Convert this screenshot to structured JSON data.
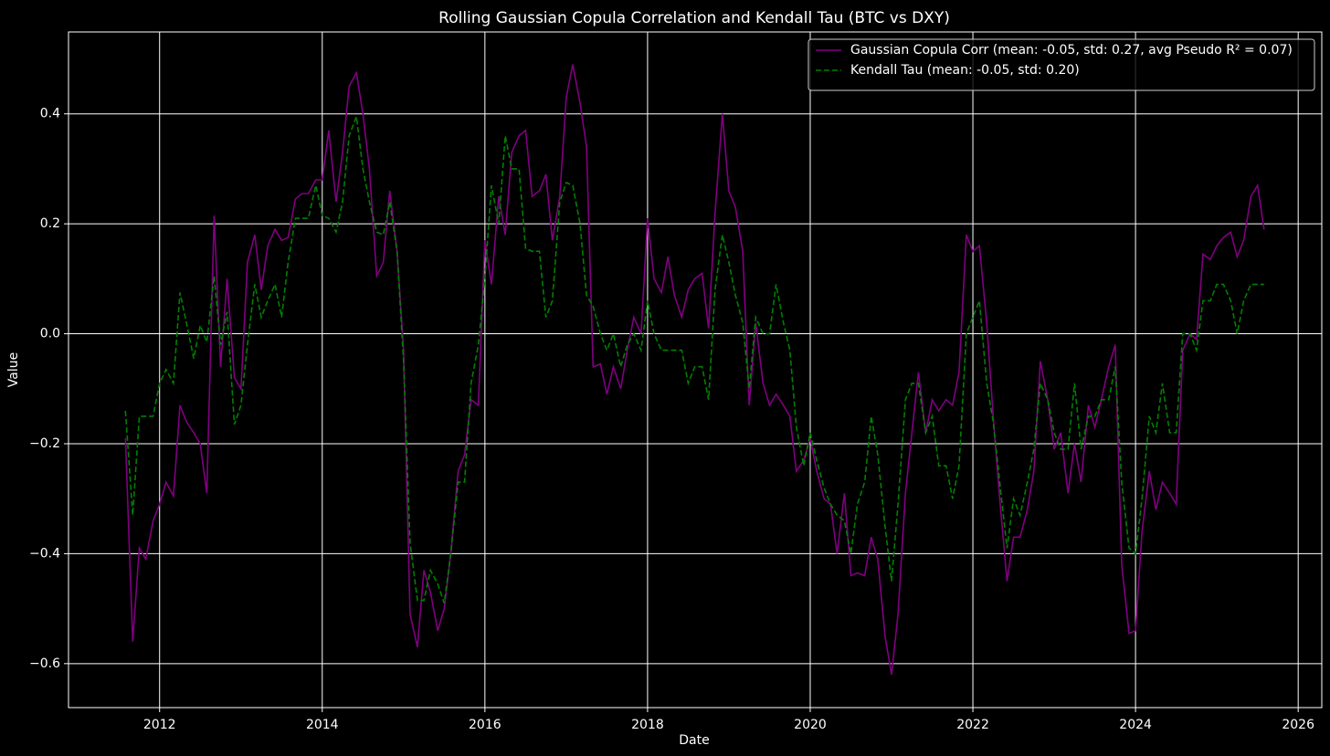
{
  "chart_data": {
    "type": "line",
    "title": "Rolling Gaussian Copula Correlation and Kendall Tau (BTC vs DXY)",
    "xlabel": "Date",
    "ylabel": "Value",
    "x": [
      2011.58,
      2011.67,
      2011.75,
      2011.83,
      2011.92,
      2012,
      2012.08,
      2012.17,
      2012.25,
      2012.33,
      2012.42,
      2012.5,
      2012.58,
      2012.67,
      2012.75,
      2012.83,
      2012.92,
      2013,
      2013.08,
      2013.17,
      2013.25,
      2013.33,
      2013.42,
      2013.5,
      2013.58,
      2013.67,
      2013.75,
      2013.83,
      2013.92,
      2014,
      2014.08,
      2014.17,
      2014.25,
      2014.33,
      2014.42,
      2014.5,
      2014.58,
      2014.67,
      2014.75,
      2014.83,
      2014.92,
      2015,
      2015.08,
      2015.17,
      2015.25,
      2015.33,
      2015.42,
      2015.5,
      2015.58,
      2015.67,
      2015.75,
      2015.83,
      2015.92,
      2016,
      2016.08,
      2016.17,
      2016.25,
      2016.33,
      2016.42,
      2016.5,
      2016.58,
      2016.67,
      2016.75,
      2016.83,
      2016.92,
      2017,
      2017.08,
      2017.17,
      2017.25,
      2017.33,
      2017.42,
      2017.5,
      2017.58,
      2017.67,
      2017.75,
      2017.83,
      2017.92,
      2018,
      2018.08,
      2018.17,
      2018.25,
      2018.33,
      2018.42,
      2018.5,
      2018.58,
      2018.67,
      2018.75,
      2018.83,
      2018.92,
      2019,
      2019.08,
      2019.17,
      2019.25,
      2019.33,
      2019.42,
      2019.5,
      2019.58,
      2019.67,
      2019.75,
      2019.83,
      2019.92,
      2020,
      2020.08,
      2020.17,
      2020.25,
      2020.33,
      2020.42,
      2020.5,
      2020.58,
      2020.67,
      2020.75,
      2020.83,
      2020.92,
      2021,
      2021.08,
      2021.17,
      2021.25,
      2021.33,
      2021.42,
      2021.5,
      2021.58,
      2021.67,
      2021.75,
      2021.83,
      2021.92,
      2022,
      2022.08,
      2022.17,
      2022.25,
      2022.33,
      2022.42,
      2022.5,
      2022.58,
      2022.67,
      2022.75,
      2022.83,
      2022.92,
      2023,
      2023.08,
      2023.17,
      2023.25,
      2023.33,
      2023.42,
      2023.5,
      2023.58,
      2023.67,
      2023.75,
      2023.83,
      2023.92,
      2024,
      2024.08,
      2024.17,
      2024.25,
      2024.33,
      2024.42,
      2024.5,
      2024.58,
      2024.67,
      2024.75,
      2024.83,
      2024.92,
      2025,
      2025.08,
      2025.17,
      2025.25,
      2025.33,
      2025.42,
      2025.5,
      2025.58
    ],
    "series": [
      {
        "name": "Gaussian Copula Corr (mean: -0.05, std: 0.27, avg Pseudo R² = 0.07)",
        "color": "#800080",
        "linestyle": "solid",
        "values": [
          -0.19,
          -0.56,
          -0.39,
          -0.41,
          -0.34,
          -0.31,
          -0.27,
          -0.295,
          -0.13,
          -0.16,
          -0.18,
          -0.2,
          -0.29,
          0.215,
          -0.06,
          0.1,
          -0.08,
          -0.1,
          0.13,
          0.18,
          0.08,
          0.16,
          0.19,
          0.17,
          0.175,
          0.245,
          0.255,
          0.255,
          0.28,
          0.28,
          0.37,
          0.24,
          0.33,
          0.45,
          0.475,
          0.4,
          0.3,
          0.105,
          0.13,
          0.26,
          0.15,
          -0.03,
          -0.51,
          -0.57,
          -0.43,
          -0.47,
          -0.54,
          -0.5,
          -0.4,
          -0.25,
          -0.22,
          -0.12,
          -0.13,
          0.17,
          0.09,
          0.25,
          0.18,
          0.33,
          0.36,
          0.37,
          0.25,
          0.26,
          0.29,
          0.17,
          0.25,
          0.43,
          0.49,
          0.42,
          0.34,
          -0.06,
          -0.055,
          -0.11,
          -0.06,
          -0.1,
          -0.03,
          0.03,
          0.0,
          0.21,
          0.1,
          0.075,
          0.14,
          0.07,
          0.03,
          0.08,
          0.1,
          0.11,
          0.01,
          0.22,
          0.4,
          0.26,
          0.23,
          0.15,
          -0.13,
          0.02,
          -0.09,
          -0.13,
          -0.11,
          -0.13,
          -0.15,
          -0.25,
          -0.23,
          -0.19,
          -0.25,
          -0.3,
          -0.31,
          -0.4,
          -0.29,
          -0.44,
          -0.435,
          -0.44,
          -0.37,
          -0.41,
          -0.55,
          -0.62,
          -0.51,
          -0.29,
          -0.18,
          -0.07,
          -0.18,
          -0.12,
          -0.14,
          -0.12,
          -0.13,
          -0.07,
          0.18,
          0.15,
          0.16,
          0.02,
          -0.15,
          -0.3,
          -0.45,
          -0.37,
          -0.37,
          -0.32,
          -0.25,
          -0.05,
          -0.12,
          -0.21,
          -0.18,
          -0.29,
          -0.2,
          -0.27,
          -0.13,
          -0.17,
          -0.12,
          -0.06,
          -0.02,
          -0.42,
          -0.545,
          -0.54,
          -0.36,
          -0.25,
          -0.32,
          -0.27,
          -0.29,
          -0.31,
          -0.03,
          0.0,
          -0.01,
          0.145,
          0.135,
          0.16,
          0.175,
          0.185,
          0.14,
          0.17,
          0.25,
          0.27,
          0.19
        ]
      },
      {
        "name": "Kendall Tau (mean: -0.05, std: 0.20)",
        "color": "#008000",
        "linestyle": "dashed",
        "values": [
          -0.14,
          -0.33,
          -0.15,
          -0.15,
          -0.15,
          -0.09,
          -0.065,
          -0.09,
          0.075,
          0.02,
          -0.045,
          0.015,
          -0.015,
          0.105,
          -0.02,
          0.04,
          -0.165,
          -0.13,
          -0.02,
          0.09,
          0.03,
          0.06,
          0.09,
          0.03,
          0.13,
          0.21,
          0.21,
          0.21,
          0.27,
          0.215,
          0.21,
          0.185,
          0.24,
          0.36,
          0.395,
          0.3,
          0.24,
          0.185,
          0.18,
          0.24,
          0.15,
          -0.05,
          -0.38,
          -0.485,
          -0.485,
          -0.43,
          -0.455,
          -0.49,
          -0.4,
          -0.27,
          -0.27,
          -0.09,
          -0.02,
          0.1,
          0.27,
          0.2,
          0.36,
          0.3,
          0.3,
          0.155,
          0.15,
          0.15,
          0.03,
          0.06,
          0.24,
          0.275,
          0.27,
          0.2,
          0.07,
          0.05,
          0.0,
          -0.03,
          0.0,
          -0.06,
          -0.02,
          0.0,
          -0.03,
          0.06,
          0.0,
          -0.03,
          -0.03,
          -0.03,
          -0.03,
          -0.09,
          -0.06,
          -0.06,
          -0.12,
          0.08,
          0.18,
          0.13,
          0.07,
          0.02,
          -0.1,
          0.03,
          0.0,
          0.0,
          0.09,
          0.02,
          -0.03,
          -0.17,
          -0.24,
          -0.18,
          -0.23,
          -0.28,
          -0.31,
          -0.33,
          -0.34,
          -0.4,
          -0.31,
          -0.27,
          -0.15,
          -0.22,
          -0.35,
          -0.45,
          -0.31,
          -0.12,
          -0.09,
          -0.09,
          -0.18,
          -0.15,
          -0.24,
          -0.24,
          -0.3,
          -0.24,
          0.0,
          0.03,
          0.06,
          -0.09,
          -0.16,
          -0.27,
          -0.39,
          -0.3,
          -0.33,
          -0.27,
          -0.21,
          -0.09,
          -0.12,
          -0.18,
          -0.21,
          -0.21,
          -0.09,
          -0.21,
          -0.15,
          -0.15,
          -0.12,
          -0.12,
          -0.06,
          -0.27,
          -0.39,
          -0.4,
          -0.3,
          -0.15,
          -0.18,
          -0.09,
          -0.18,
          -0.18,
          0.0,
          0.0,
          -0.03,
          0.06,
          0.06,
          0.09,
          0.09,
          0.06,
          0.0,
          0.06,
          0.09,
          0.09,
          0.09
        ]
      }
    ],
    "xlim": [
      2010.88,
      2026.29
    ],
    "xticks": [
      2012,
      2014,
      2016,
      2018,
      2020,
      2022,
      2024,
      2026
    ],
    "ylim": [
      -0.68,
      0.549
    ],
    "yticks": [
      {
        "value": -0.6,
        "label": "−0.6"
      },
      {
        "value": -0.4,
        "label": "−0.4"
      },
      {
        "value": -0.2,
        "label": "−0.2"
      },
      {
        "value": 0,
        "label": "0.0"
      },
      0.2,
      0.4
    ],
    "grid": true,
    "legend": "upper right"
  }
}
